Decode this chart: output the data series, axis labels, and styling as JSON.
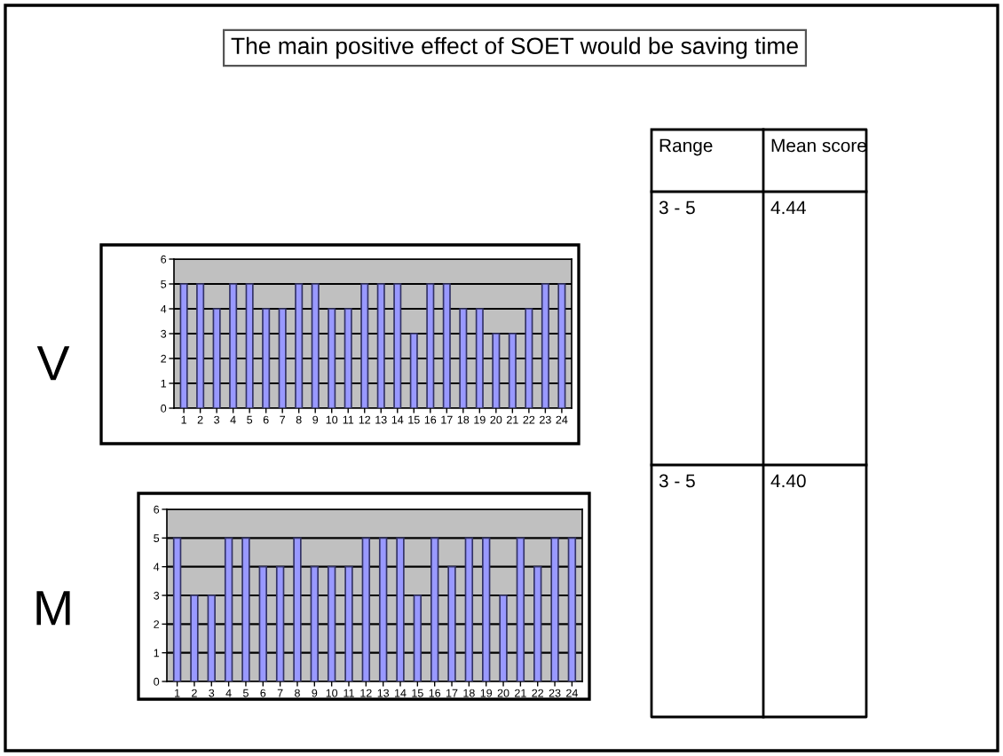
{
  "chart_data": [
    {
      "type": "other",
      "title": "The main positive effect of SOET would be saving time",
      "annotations": [
        "Range",
        "Mean score",
        "3 - 5",
        "4.44",
        "3 - 5",
        "4.40"
      ]
    },
    {
      "type": "bar",
      "title": "V",
      "categories": [
        "1",
        "2",
        "3",
        "4",
        "5",
        "6",
        "7",
        "8",
        "9",
        "10",
        "11",
        "12",
        "13",
        "14",
        "15",
        "16",
        "17",
        "18",
        "19",
        "20",
        "21",
        "22",
        "23",
        "24"
      ],
      "values": [
        5,
        5,
        4,
        5,
        5,
        4,
        4,
        5,
        5,
        4,
        4,
        5,
        5,
        5,
        3,
        5,
        5,
        4,
        4,
        3,
        3,
        4,
        5,
        5
      ],
      "color": "#9999ff",
      "ylim": [
        0,
        6
      ],
      "yticks": [
        0,
        1,
        2,
        3,
        4,
        5,
        6
      ],
      "grid": "y"
    },
    {
      "type": "bar",
      "title": "M",
      "categories": [
        "1",
        "2",
        "3",
        "4",
        "5",
        "6",
        "7",
        "8",
        "9",
        "10",
        "11",
        "12",
        "13",
        "14",
        "15",
        "16",
        "17",
        "18",
        "19",
        "20",
        "21",
        "22",
        "23",
        "24"
      ],
      "values": [
        5,
        3,
        3,
        5,
        5,
        4,
        4,
        5,
        4,
        4,
        4,
        5,
        5,
        5,
        3,
        5,
        4,
        5,
        5,
        3,
        5,
        4,
        5,
        5
      ],
      "color": "#9999ff",
      "ylim": [
        0,
        6
      ],
      "yticks": [
        0,
        1,
        2,
        3,
        4,
        5,
        6
      ],
      "grid": "y"
    }
  ]
}
